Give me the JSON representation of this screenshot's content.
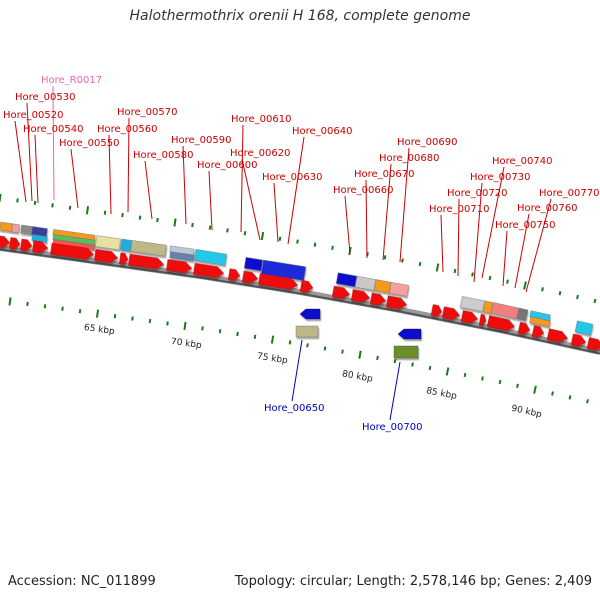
{
  "title": "Halothermothrix orenii H 168, complete genome",
  "accession_text": "Accession: NC_011899",
  "summary_text": "Topology: circular; Length: 2,578,146 bp; Genes: 2,409",
  "colors": {
    "cds": "#ee1111",
    "label_top": "#cc0000",
    "label_bottom": "#0000bb",
    "label_rna": "#ee66aa",
    "tick": "#1a7a1a",
    "backbone": "#777777"
  },
  "scale_labels": [
    "65 kbp",
    "70 kbp",
    "75 kbp",
    "80 kbp",
    "85 kbp",
    "90 kbp"
  ],
  "gene_labels_top": [
    "Hore_R0017",
    "Hore_00530",
    "Hore_00520",
    "Hore_00540",
    "Hore_00550",
    "Hore_00570",
    "Hore_00560",
    "Hore_00590",
    "Hore_00580",
    "Hore_00610",
    "Hore_00600",
    "Hore_00640",
    "Hore_00620",
    "Hore_00630",
    "Hore_00690",
    "Hore_00680",
    "Hore_00670",
    "Hore_00660",
    "Hore_00740",
    "Hore_00730",
    "Hore_00720",
    "Hore_00710",
    "Hore_00770",
    "Hore_00760",
    "Hore_00750"
  ],
  "gene_labels_bottom": [
    "Hore_00650",
    "Hore_00700"
  ]
}
